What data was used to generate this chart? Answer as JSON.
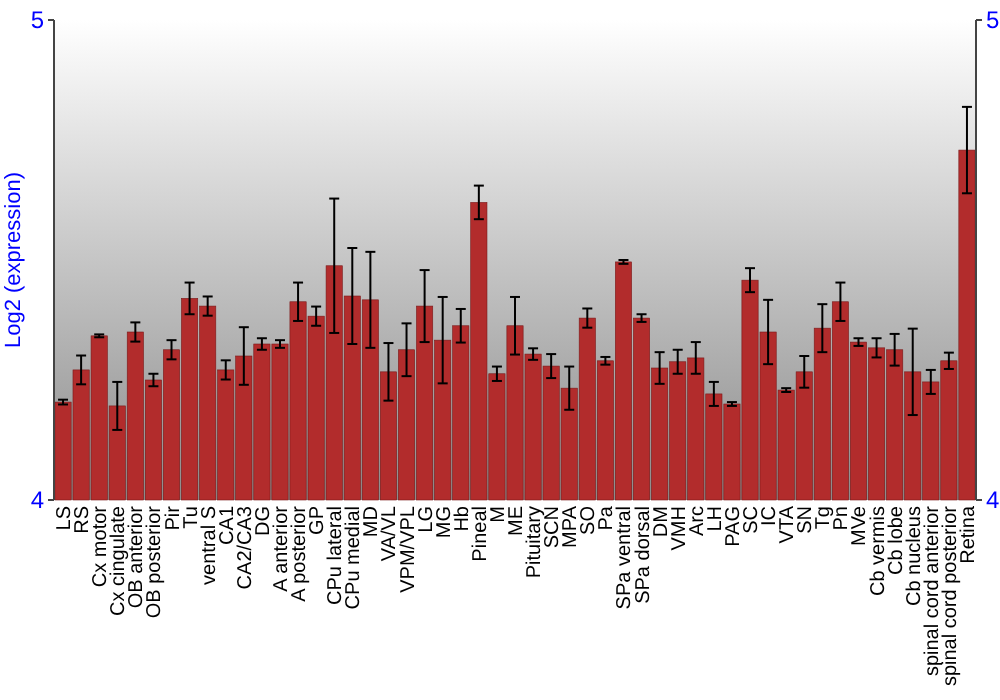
{
  "chart_data": {
    "type": "bar",
    "ylabel": "Log2 (expression)",
    "categories": [
      "LS",
      "RS",
      "Cx motor",
      "Cx cingulate",
      "OB anterior",
      "OB posterior",
      "Pir",
      "Tu",
      "ventral S",
      "CA1",
      "CA2/CA3",
      "DG",
      "A anterior",
      "A posterior",
      "GP",
      "CPu lateral",
      "CPu medial",
      "MD",
      "VA/VL",
      "VPM/VPL",
      "LG",
      "MG",
      "Hb",
      "Pineal",
      "M",
      "ME",
      "Pituitary",
      "SCN",
      "MPA",
      "SO",
      "Pa",
      "SPa ventral",
      "SPa dorsal",
      "DM",
      "VMH",
      "Arc",
      "LH",
      "PAG",
      "SC",
      "IC",
      "VTA",
      "SN",
      "Tg",
      "Pn",
      "MVe",
      "Cb vermis",
      "Cb lobe",
      "Cb nucleus",
      "spinal cord anterior",
      "spinal cord posterior",
      "Retina"
    ],
    "values": [
      4.204,
      4.271,
      4.342,
      4.196,
      4.35,
      4.25,
      4.313,
      4.42,
      4.404,
      4.271,
      4.3,
      4.325,
      4.325,
      4.413,
      4.383,
      4.488,
      4.425,
      4.417,
      4.267,
      4.313,
      4.404,
      4.333,
      4.363,
      4.62,
      4.263,
      4.363,
      4.304,
      4.279,
      4.233,
      4.379,
      4.29,
      4.496,
      4.379,
      4.275,
      4.288,
      4.296,
      4.221,
      4.2,
      4.458,
      4.35,
      4.229,
      4.267,
      4.358,
      4.413,
      4.329,
      4.317,
      4.313,
      4.267,
      4.246,
      4.29,
      4.729
    ],
    "errors": [
      0.005,
      0.03,
      0.003,
      0.05,
      0.02,
      0.013,
      0.02,
      0.033,
      0.02,
      0.02,
      0.06,
      0.012,
      0.008,
      0.04,
      0.02,
      0.14,
      0.1,
      0.1,
      0.06,
      0.055,
      0.075,
      0.09,
      0.035,
      0.035,
      0.015,
      0.06,
      0.012,
      0.025,
      0.045,
      0.02,
      0.008,
      0.004,
      0.008,
      0.033,
      0.025,
      0.033,
      0.025,
      0.004,
      0.025,
      0.067,
      0.004,
      0.033,
      0.05,
      0.04,
      0.008,
      0.02,
      0.033,
      0.09,
      0.025,
      0.017,
      0.09
    ],
    "color": "#b22c2c",
    "ylim": [
      4,
      5
    ],
    "yticks": [
      4,
      5
    ],
    "y2lim": [
      4,
      5
    ],
    "y2ticks": [
      4,
      5
    ],
    "grid": false
  }
}
